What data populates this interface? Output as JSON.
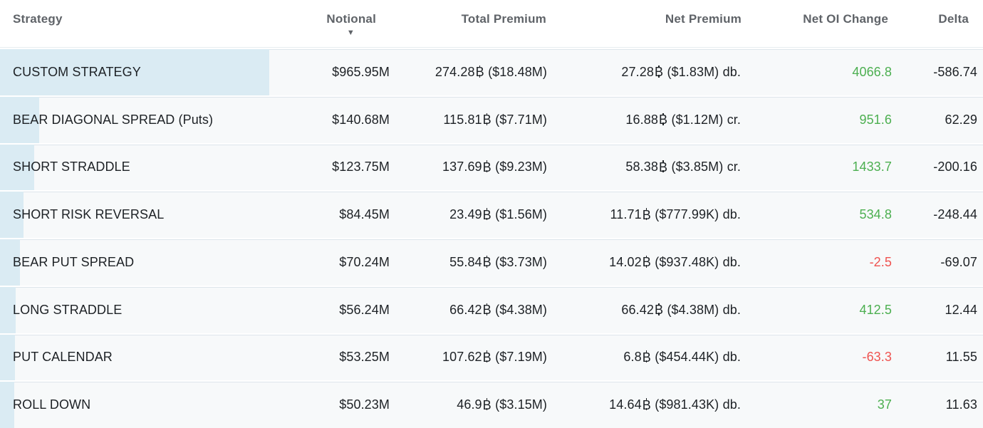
{
  "table": {
    "columns": [
      {
        "label": "Strategy"
      },
      {
        "label": "Notional",
        "sorted": "descending"
      },
      {
        "label": "Total Premium"
      },
      {
        "label": "Net Premium"
      },
      {
        "label": "Net OI Change"
      },
      {
        "label": "Delta"
      }
    ],
    "rows": [
      {
        "strategy": "CUSTOM STRATEGY",
        "notional": "$965.95M",
        "notional_musd": 965.95,
        "total_premium_btc": "274.28",
        "total_premium_usd": "($18.48M)",
        "net_premium_btc": "27.28",
        "net_premium_usd": "($1.83M)",
        "net_premium_side": "db.",
        "net_oi_change": "4066.8",
        "delta": "-586.74"
      },
      {
        "strategy": "BEAR DIAGONAL SPREAD (Puts)",
        "notional": "$140.68M",
        "notional_musd": 140.68,
        "total_premium_btc": "115.81",
        "total_premium_usd": "($7.71M)",
        "net_premium_btc": "16.88",
        "net_premium_usd": "($1.12M)",
        "net_premium_side": "cr.",
        "net_oi_change": "951.6",
        "delta": "62.29"
      },
      {
        "strategy": "SHORT STRADDLE",
        "notional": "$123.75M",
        "notional_musd": 123.75,
        "total_premium_btc": "137.69",
        "total_premium_usd": "($9.23M)",
        "net_premium_btc": "58.38",
        "net_premium_usd": "($3.85M)",
        "net_premium_side": "cr.",
        "net_oi_change": "1433.7",
        "delta": "-200.16"
      },
      {
        "strategy": "SHORT RISK REVERSAL",
        "notional": "$84.45M",
        "notional_musd": 84.45,
        "total_premium_btc": "23.49",
        "total_premium_usd": "($1.56M)",
        "net_premium_btc": "11.71",
        "net_premium_usd": "($777.99K)",
        "net_premium_side": "db.",
        "net_oi_change": "534.8",
        "delta": "-248.44"
      },
      {
        "strategy": "BEAR PUT SPREAD",
        "notional": "$70.24M",
        "notional_musd": 70.24,
        "total_premium_btc": "55.84",
        "total_premium_usd": "($3.73M)",
        "net_premium_btc": "14.02",
        "net_premium_usd": "($937.48K)",
        "net_premium_side": "db.",
        "net_oi_change": "-2.5",
        "delta": "-69.07"
      },
      {
        "strategy": "LONG STRADDLE",
        "notional": "$56.24M",
        "notional_musd": 56.24,
        "total_premium_btc": "66.42",
        "total_premium_usd": "($4.38M)",
        "net_premium_btc": "66.42",
        "net_premium_usd": "($4.38M)",
        "net_premium_side": "db.",
        "net_oi_change": "412.5",
        "delta": "12.44"
      },
      {
        "strategy": "PUT CALENDAR",
        "notional": "$53.25M",
        "notional_musd": 53.25,
        "total_premium_btc": "107.62",
        "total_premium_usd": "($7.19M)",
        "net_premium_btc": "6.8",
        "net_premium_usd": "($454.44K)",
        "net_premium_side": "db.",
        "net_oi_change": "-63.3",
        "delta": "11.55"
      },
      {
        "strategy": "ROLL DOWN",
        "notional": "$50.23M",
        "notional_musd": 50.23,
        "total_premium_btc": "46.9",
        "total_premium_usd": "($3.15M)",
        "net_premium_btc": "14.64",
        "net_premium_usd": "($981.43K)",
        "net_premium_side": "db.",
        "net_oi_change": "37",
        "delta": "11.63"
      }
    ],
    "icons": {
      "bitcoin_glyph": "B",
      "sort_desc": "▼"
    },
    "colors": {
      "positive": "#4caf50",
      "negative": "#ef5350",
      "notional_bar": "#daebf3",
      "header_text": "#5f6368",
      "row_background": "#f7f9fa"
    }
  }
}
